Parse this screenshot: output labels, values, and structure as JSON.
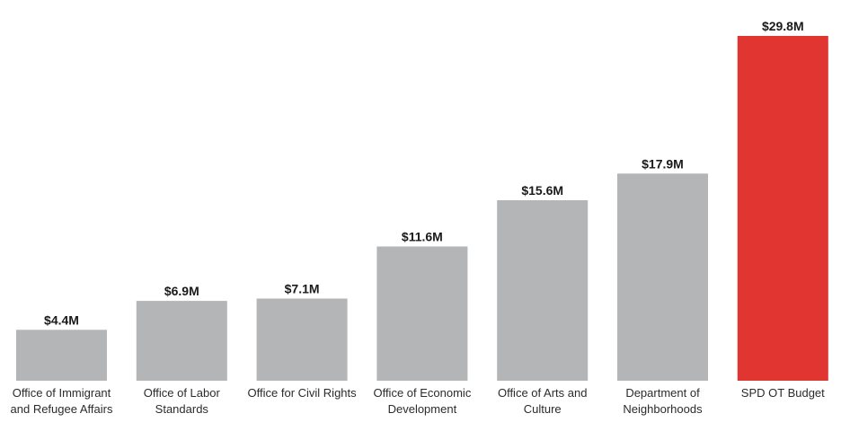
{
  "chart_data": {
    "type": "bar",
    "title": "",
    "xlabel": "",
    "ylabel": "",
    "ylim": [
      0,
      29.8
    ],
    "grid": false,
    "legend": "none",
    "categories": [
      [
        "Office of Immigrant",
        "and Refugee Affairs"
      ],
      [
        "Office of Labor",
        "Standards"
      ],
      [
        "Office for Civil Rights"
      ],
      [
        "Office of Economic",
        "Development"
      ],
      [
        "Office of Arts and",
        "Culture"
      ],
      [
        "Department of",
        "Neighborhoods"
      ],
      [
        "SPD OT Budget"
      ]
    ],
    "values": [
      4.4,
      6.9,
      7.1,
      11.6,
      15.6,
      17.9,
      29.8
    ],
    "value_labels": [
      "$4.4M",
      "$6.9M",
      "$7.1M",
      "$11.6M",
      "$15.6M",
      "$17.9M",
      "$29.8M"
    ],
    "colors": [
      "#b3b5b6",
      "#b3b5b6",
      "#b3b5b6",
      "#b3b5b6",
      "#b3b5b6",
      "#b3b5b6",
      "#e03531"
    ]
  }
}
